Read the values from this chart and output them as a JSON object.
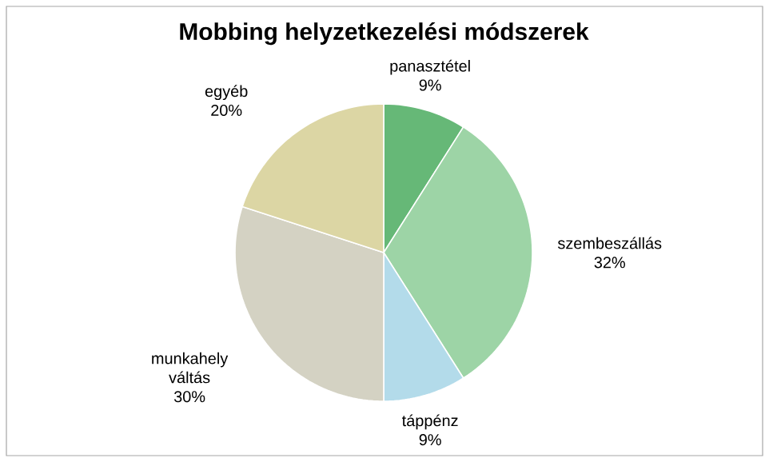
{
  "chart_data": {
    "type": "pie",
    "title": "Mobbing helyzetkezelési módszerek",
    "categories": [
      "panasztétel",
      "szembeszállás",
      "táppénz",
      "munkahely váltás",
      "egyéb"
    ],
    "values": [
      9,
      32,
      9,
      30,
      20
    ],
    "value_labels": [
      "9%",
      "32%",
      "9%",
      "30%",
      "20%"
    ],
    "colors": [
      "#66b877",
      "#9dd4a6",
      "#b3dbea",
      "#d4d2c3",
      "#dcd6a4"
    ]
  }
}
